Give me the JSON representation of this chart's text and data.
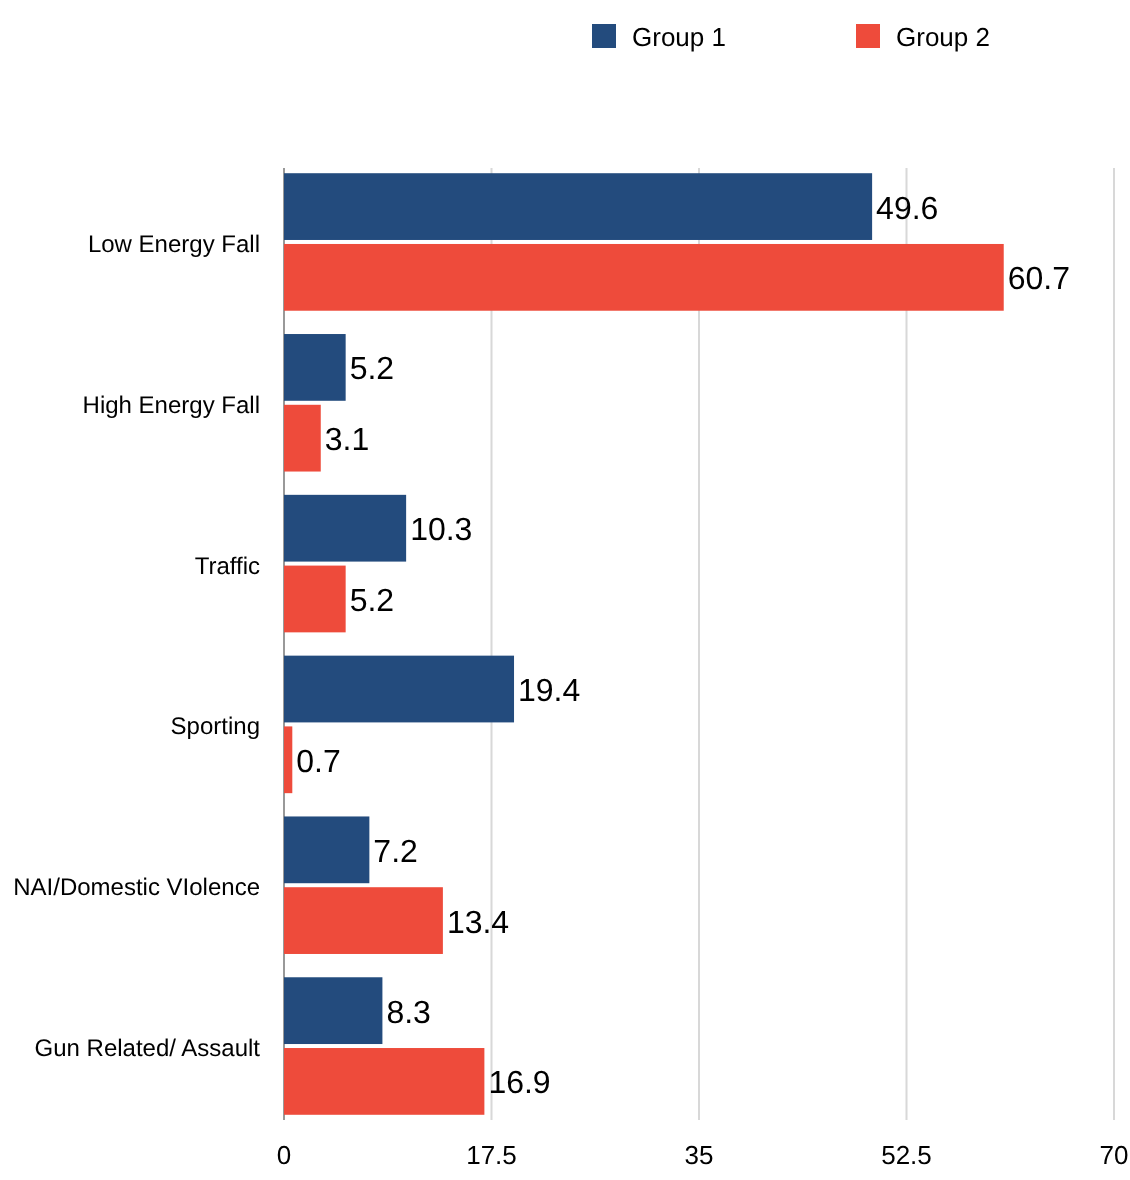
{
  "chart_data": {
    "type": "bar",
    "orientation": "horizontal",
    "categories": [
      "Low Energy Fall",
      "High Energy Fall",
      "Traffic",
      "Sporting",
      "NAI/Domestic VIolence",
      "Gun Related/ Assault"
    ],
    "series": [
      {
        "name": "Group 1",
        "color": "#234b7d",
        "values": [
          49.6,
          5.2,
          10.3,
          19.4,
          7.2,
          8.3
        ]
      },
      {
        "name": "Group 2",
        "color": "#ee4b3b",
        "values": [
          60.7,
          3.1,
          5.2,
          0.7,
          13.4,
          16.9
        ]
      }
    ],
    "xlim": [
      0,
      70
    ],
    "xticks": [
      0,
      17.5,
      35,
      52.5,
      70
    ],
    "grid": "x",
    "legend": "top",
    "data_labels": true
  }
}
